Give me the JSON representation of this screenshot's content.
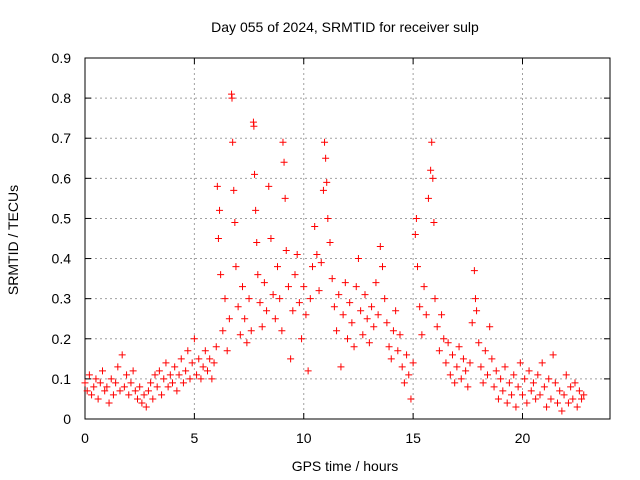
{
  "chart_data": {
    "type": "scatter",
    "title": "Day 055 of 2024, SRMTID for receiver sulp",
    "xlabel": "GPS time / hours",
    "ylabel": "SRMTID / TECUs",
    "xlim": [
      0,
      24
    ],
    "ylim": [
      0,
      0.9
    ],
    "x_ticks": [
      0,
      5,
      10,
      15,
      20
    ],
    "x_tick_labels": [
      "0",
      "5",
      "10",
      "15",
      "20"
    ],
    "y_ticks": [
      0,
      0.1,
      0.2,
      0.3,
      0.4,
      0.5,
      0.6,
      0.7,
      0.8,
      0.9
    ],
    "y_tick_labels": [
      "0",
      "0.1",
      "0.2",
      "0.3",
      "0.4",
      "0.5",
      "0.6",
      "0.7",
      "0.8",
      "0.9"
    ],
    "grid": true,
    "marker": "+",
    "color": "#ff0000",
    "series": [
      {
        "name": "SRMTID",
        "points": [
          [
            0.0,
            0.09
          ],
          [
            0.1,
            0.07
          ],
          [
            0.2,
            0.11
          ],
          [
            0.3,
            0.06
          ],
          [
            0.4,
            0.08
          ],
          [
            0.5,
            0.1
          ],
          [
            0.6,
            0.05
          ],
          [
            0.7,
            0.09
          ],
          [
            0.8,
            0.12
          ],
          [
            0.9,
            0.07
          ],
          [
            1.0,
            0.08
          ],
          [
            1.1,
            0.04
          ],
          [
            1.2,
            0.1
          ],
          [
            1.3,
            0.06
          ],
          [
            1.4,
            0.09
          ],
          [
            1.5,
            0.13
          ],
          [
            1.6,
            0.07
          ],
          [
            1.7,
            0.16
          ],
          [
            1.8,
            0.08
          ],
          [
            1.9,
            0.11
          ],
          [
            2.0,
            0.06
          ],
          [
            2.1,
            0.09
          ],
          [
            2.2,
            0.12
          ],
          [
            2.3,
            0.07
          ],
          [
            2.4,
            0.05
          ],
          [
            2.5,
            0.08
          ],
          [
            2.6,
            0.04
          ],
          [
            2.7,
            0.06
          ],
          [
            2.8,
            0.03
          ],
          [
            2.9,
            0.07
          ],
          [
            3.0,
            0.09
          ],
          [
            3.1,
            0.05
          ],
          [
            3.2,
            0.11
          ],
          [
            3.3,
            0.08
          ],
          [
            3.4,
            0.12
          ],
          [
            3.5,
            0.06
          ],
          [
            3.6,
            0.1
          ],
          [
            3.7,
            0.14
          ],
          [
            3.8,
            0.08
          ],
          [
            3.9,
            0.11
          ],
          [
            4.0,
            0.09
          ],
          [
            4.1,
            0.13
          ],
          [
            4.2,
            0.07
          ],
          [
            4.3,
            0.11
          ],
          [
            4.4,
            0.15
          ],
          [
            4.5,
            0.09
          ],
          [
            4.6,
            0.12
          ],
          [
            4.7,
            0.17
          ],
          [
            4.8,
            0.1
          ],
          [
            4.9,
            0.14
          ],
          [
            5.0,
            0.2
          ],
          [
            5.1,
            0.11
          ],
          [
            5.2,
            0.15
          ],
          [
            5.3,
            0.1
          ],
          [
            5.4,
            0.13
          ],
          [
            5.5,
            0.17
          ],
          [
            5.6,
            0.12
          ],
          [
            5.7,
            0.15
          ],
          [
            5.8,
            0.1
          ],
          [
            5.9,
            0.14
          ],
          [
            6.0,
            0.18
          ],
          [
            6.05,
            0.58
          ],
          [
            6.1,
            0.45
          ],
          [
            6.15,
            0.52
          ],
          [
            6.2,
            0.36
          ],
          [
            6.3,
            0.22
          ],
          [
            6.4,
            0.3
          ],
          [
            6.5,
            0.17
          ],
          [
            6.6,
            0.25
          ],
          [
            6.7,
            0.81
          ],
          [
            6.72,
            0.8
          ],
          [
            6.75,
            0.69
          ],
          [
            6.8,
            0.57
          ],
          [
            6.85,
            0.49
          ],
          [
            6.9,
            0.38
          ],
          [
            7.0,
            0.28
          ],
          [
            7.1,
            0.21
          ],
          [
            7.2,
            0.33
          ],
          [
            7.3,
            0.25
          ],
          [
            7.4,
            0.19
          ],
          [
            7.5,
            0.3
          ],
          [
            7.6,
            0.22
          ],
          [
            7.7,
            0.74
          ],
          [
            7.72,
            0.73
          ],
          [
            7.75,
            0.61
          ],
          [
            7.8,
            0.52
          ],
          [
            7.85,
            0.44
          ],
          [
            7.9,
            0.36
          ],
          [
            8.0,
            0.29
          ],
          [
            8.1,
            0.23
          ],
          [
            8.2,
            0.34
          ],
          [
            8.3,
            0.27
          ],
          [
            8.4,
            0.58
          ],
          [
            8.5,
            0.45
          ],
          [
            8.6,
            0.31
          ],
          [
            8.7,
            0.25
          ],
          [
            8.8,
            0.38
          ],
          [
            8.9,
            0.3
          ],
          [
            9.0,
            0.22
          ],
          [
            9.05,
            0.69
          ],
          [
            9.1,
            0.64
          ],
          [
            9.15,
            0.55
          ],
          [
            9.2,
            0.42
          ],
          [
            9.3,
            0.33
          ],
          [
            9.4,
            0.15
          ],
          [
            9.5,
            0.27
          ],
          [
            9.6,
            0.36
          ],
          [
            9.7,
            0.41
          ],
          [
            9.8,
            0.29
          ],
          [
            9.9,
            0.2
          ],
          [
            10.0,
            0.33
          ],
          [
            10.1,
            0.26
          ],
          [
            10.2,
            0.12
          ],
          [
            10.3,
            0.3
          ],
          [
            10.4,
            0.38
          ],
          [
            10.5,
            0.48
          ],
          [
            10.6,
            0.41
          ],
          [
            10.7,
            0.32
          ],
          [
            10.8,
            0.39
          ],
          [
            10.9,
            0.57
          ],
          [
            10.95,
            0.69
          ],
          [
            11.0,
            0.65
          ],
          [
            11.05,
            0.59
          ],
          [
            11.1,
            0.5
          ],
          [
            11.2,
            0.44
          ],
          [
            11.3,
            0.35
          ],
          [
            11.4,
            0.28
          ],
          [
            11.5,
            0.22
          ],
          [
            11.6,
            0.31
          ],
          [
            11.7,
            0.13
          ],
          [
            11.8,
            0.26
          ],
          [
            11.9,
            0.34
          ],
          [
            12.0,
            0.2
          ],
          [
            12.1,
            0.29
          ],
          [
            12.2,
            0.24
          ],
          [
            12.3,
            0.18
          ],
          [
            12.4,
            0.33
          ],
          [
            12.5,
            0.4
          ],
          [
            12.6,
            0.27
          ],
          [
            12.7,
            0.21
          ],
          [
            12.8,
            0.31
          ],
          [
            12.9,
            0.25
          ],
          [
            13.0,
            0.19
          ],
          [
            13.1,
            0.28
          ],
          [
            13.2,
            0.23
          ],
          [
            13.3,
            0.34
          ],
          [
            13.4,
            0.26
          ],
          [
            13.5,
            0.43
          ],
          [
            13.6,
            0.38
          ],
          [
            13.7,
            0.3
          ],
          [
            13.8,
            0.24
          ],
          [
            13.9,
            0.18
          ],
          [
            14.0,
            0.15
          ],
          [
            14.1,
            0.22
          ],
          [
            14.2,
            0.27
          ],
          [
            14.3,
            0.17
          ],
          [
            14.4,
            0.21
          ],
          [
            14.5,
            0.13
          ],
          [
            14.6,
            0.09
          ],
          [
            14.7,
            0.16
          ],
          [
            14.8,
            0.11
          ],
          [
            14.9,
            0.05
          ],
          [
            15.0,
            0.14
          ],
          [
            15.1,
            0.46
          ],
          [
            15.15,
            0.5
          ],
          [
            15.2,
            0.38
          ],
          [
            15.3,
            0.28
          ],
          [
            15.4,
            0.21
          ],
          [
            15.5,
            0.33
          ],
          [
            15.6,
            0.26
          ],
          [
            15.7,
            0.55
          ],
          [
            15.8,
            0.62
          ],
          [
            15.85,
            0.69
          ],
          [
            15.9,
            0.6
          ],
          [
            15.95,
            0.49
          ],
          [
            16.0,
            0.3
          ],
          [
            16.1,
            0.23
          ],
          [
            16.2,
            0.17
          ],
          [
            16.3,
            0.26
          ],
          [
            16.4,
            0.2
          ],
          [
            16.5,
            0.14
          ],
          [
            16.6,
            0.19
          ],
          [
            16.7,
            0.11
          ],
          [
            16.8,
            0.16
          ],
          [
            16.9,
            0.09
          ],
          [
            17.0,
            0.13
          ],
          [
            17.1,
            0.18
          ],
          [
            17.2,
            0.1
          ],
          [
            17.3,
            0.15
          ],
          [
            17.4,
            0.12
          ],
          [
            17.5,
            0.08
          ],
          [
            17.6,
            0.14
          ],
          [
            17.7,
            0.24
          ],
          [
            17.8,
            0.37
          ],
          [
            17.85,
            0.3
          ],
          [
            17.9,
            0.27
          ],
          [
            18.0,
            0.19
          ],
          [
            18.1,
            0.13
          ],
          [
            18.2,
            0.09
          ],
          [
            18.3,
            0.17
          ],
          [
            18.4,
            0.11
          ],
          [
            18.5,
            0.23
          ],
          [
            18.6,
            0.15
          ],
          [
            18.7,
            0.08
          ],
          [
            18.8,
            0.12
          ],
          [
            18.9,
            0.05
          ],
          [
            19.0,
            0.1
          ],
          [
            19.1,
            0.07
          ],
          [
            19.2,
            0.13
          ],
          [
            19.3,
            0.04
          ],
          [
            19.4,
            0.09
          ],
          [
            19.5,
            0.06
          ],
          [
            19.6,
            0.11
          ],
          [
            19.7,
            0.03
          ],
          [
            19.8,
            0.08
          ],
          [
            19.9,
            0.14
          ],
          [
            20.0,
            0.06
          ],
          [
            20.1,
            0.1
          ],
          [
            20.2,
            0.04
          ],
          [
            20.3,
            0.12
          ],
          [
            20.4,
            0.07
          ],
          [
            20.5,
            0.09
          ],
          [
            20.6,
            0.05
          ],
          [
            20.7,
            0.11
          ],
          [
            20.8,
            0.06
          ],
          [
            20.9,
            0.14
          ],
          [
            21.0,
            0.08
          ],
          [
            21.1,
            0.03
          ],
          [
            21.2,
            0.1
          ],
          [
            21.3,
            0.05
          ],
          [
            21.4,
            0.16
          ],
          [
            21.5,
            0.09
          ],
          [
            21.6,
            0.04
          ],
          [
            21.7,
            0.07
          ],
          [
            21.8,
            0.02
          ],
          [
            21.9,
            0.06
          ],
          [
            22.0,
            0.11
          ],
          [
            22.1,
            0.04
          ],
          [
            22.2,
            0.08
          ],
          [
            22.3,
            0.05
          ],
          [
            22.4,
            0.09
          ],
          [
            22.5,
            0.03
          ],
          [
            22.6,
            0.07
          ],
          [
            22.7,
            0.05
          ],
          [
            22.8,
            0.06
          ]
        ]
      }
    ]
  }
}
